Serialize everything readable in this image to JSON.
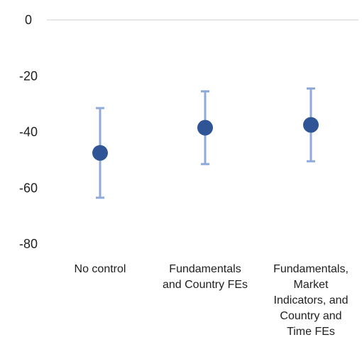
{
  "chart_data": {
    "type": "scatter",
    "title": "",
    "xlabel": "",
    "ylabel": "",
    "categories": [
      [
        "No control"
      ],
      [
        "Fundamentals",
        "and Country FEs"
      ],
      [
        "Fundamentals,",
        "Market",
        "Indicators, and",
        "Country and",
        "Time FEs"
      ]
    ],
    "series": [
      {
        "values": [
          -47.5,
          -38.5,
          -37.5
        ],
        "lower": [
          -63.5,
          -51.5,
          -50.5
        ],
        "upper": [
          -31.5,
          -25.5,
          -24.5
        ]
      }
    ],
    "ylim": [
      -80,
      0
    ],
    "yticks": [
      0,
      -20,
      -40,
      -60,
      -80
    ],
    "grid": false,
    "zero_line": true,
    "legend": "none",
    "colors": {
      "marker": "#2f5597",
      "error_bar": "#8faadc",
      "zero_line": "#d9d9d9",
      "text": "#1f1f1f"
    }
  }
}
